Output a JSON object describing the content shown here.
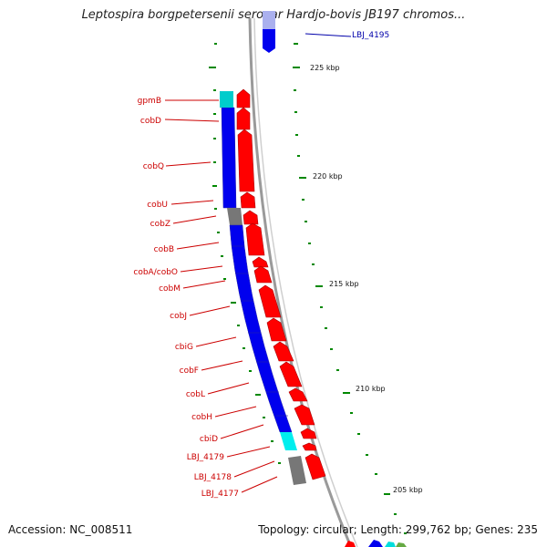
{
  "header": {
    "title": "Leptospira borgpetersenii serovar Hardjo-bovis JB197 chromos..."
  },
  "footer": {
    "accession": "Accession: NC_008511",
    "summary": "Topology: circular; Length: 299,762 bp; Genes: 235"
  },
  "colors": {
    "forward_cds": "#ff0000",
    "reverse_cds": "#0000ee",
    "rna_cyan": "#00eeee",
    "other_gray": "#777777",
    "backbone": "#999999",
    "tick_green": "#008800",
    "label_red": "#cc0000",
    "label_blue": "#0000aa"
  },
  "gene_labels": [
    "gpmB",
    "cobD",
    "cobQ",
    "cobU",
    "cobZ",
    "cobB",
    "cobA/cobO",
    "cobM",
    "cobJ",
    "cbiG",
    "cobF",
    "cobL",
    "cobH",
    "cbiD",
    "LBJ_4179",
    "LBJ_4178",
    "LBJ_4177"
  ],
  "top_label": "LBJ_4195",
  "kbp_labels": [
    "225 kbp",
    "220 kbp",
    "215 kbp",
    "210 kbp",
    "205 kbp"
  ]
}
